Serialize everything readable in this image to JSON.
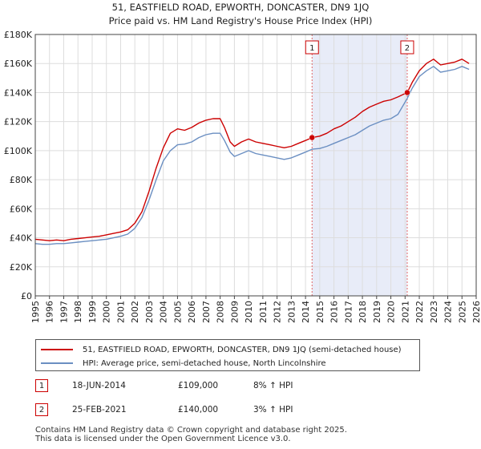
{
  "chart_data": {
    "type": "line",
    "title": "51, EASTFIELD ROAD, EPWORTH, DONCASTER, DN9 1JQ",
    "subtitle": "Price paid vs. HM Land Registry's House Price Index (HPI)",
    "xlabel": "",
    "ylabel": "",
    "xlim": [
      1995,
      2026
    ],
    "ylim": [
      0,
      180000
    ],
    "x_ticks": [
      "1995",
      "1996",
      "1997",
      "1998",
      "1999",
      "2000",
      "2001",
      "2002",
      "2003",
      "2004",
      "2005",
      "2006",
      "2007",
      "2008",
      "2009",
      "2010",
      "2011",
      "2012",
      "2013",
      "2014",
      "2015",
      "2016",
      "2017",
      "2018",
      "2019",
      "2020",
      "2021",
      "2022",
      "2023",
      "2024",
      "2025",
      "2026"
    ],
    "y_ticks": [
      {
        "value": 0,
        "label": "£0"
      },
      {
        "value": 20000,
        "label": "£20K"
      },
      {
        "value": 40000,
        "label": "£40K"
      },
      {
        "value": 60000,
        "label": "£60K"
      },
      {
        "value": 80000,
        "label": "£80K"
      },
      {
        "value": 100000,
        "label": "£100K"
      },
      {
        "value": 120000,
        "label": "£120K"
      },
      {
        "value": 140000,
        "label": "£140K"
      },
      {
        "value": 160000,
        "label": "£160K"
      },
      {
        "value": 180000,
        "label": "£180K"
      }
    ],
    "grid": true,
    "shaded_period": [
      2014.46,
      2021.15
    ],
    "series": [
      {
        "name": "51, EASTFIELD ROAD, EPWORTH, DONCASTER, DN9 1JQ (semi-detached house)",
        "color": "#cc0000",
        "x": [
          1995,
          1995.5,
          1996,
          1996.5,
          1997,
          1997.5,
          1998,
          1998.5,
          1999,
          1999.5,
          2000,
          2000.5,
          2001,
          2001.5,
          2002,
          2002.5,
          2003,
          2003.5,
          2004,
          2004.5,
          2005,
          2005.5,
          2006,
          2006.5,
          2007,
          2007.5,
          2008,
          2008.3,
          2008.7,
          2009,
          2009.5,
          2010,
          2010.5,
          2011,
          2011.5,
          2012,
          2012.5,
          2013,
          2013.5,
          2014,
          2014.46,
          2015,
          2015.5,
          2016,
          2016.5,
          2017,
          2017.5,
          2018,
          2018.5,
          2019,
          2019.5,
          2020,
          2020.5,
          2021.15,
          2021.5,
          2022,
          2022.5,
          2023,
          2023.5,
          2024,
          2024.5,
          2025,
          2025.5
        ],
        "y": [
          39000,
          38500,
          38000,
          38500,
          38000,
          39000,
          39500,
          40000,
          40500,
          41000,
          42000,
          43000,
          44000,
          45500,
          50000,
          58000,
          72000,
          88000,
          102000,
          112000,
          115000,
          114000,
          116000,
          119000,
          121000,
          122000,
          122000,
          116000,
          106000,
          103000,
          106000,
          108000,
          106000,
          105000,
          104000,
          103000,
          102000,
          103000,
          105000,
          107000,
          109000,
          110000,
          112000,
          115000,
          117000,
          120000,
          123000,
          127000,
          130000,
          132000,
          134000,
          135000,
          137000,
          140000,
          147000,
          155000,
          160000,
          163000,
          159000,
          160000,
          161000,
          163000,
          160000
        ]
      },
      {
        "name": "HPI: Average price, semi-detached house, North Lincolnshire",
        "color": "#6b8fc2",
        "x": [
          1995,
          1995.5,
          1996,
          1996.5,
          1997,
          1997.5,
          1998,
          1998.5,
          1999,
          1999.5,
          2000,
          2000.5,
          2001,
          2001.5,
          2002,
          2002.5,
          2003,
          2003.5,
          2004,
          2004.5,
          2005,
          2005.5,
          2006,
          2006.5,
          2007,
          2007.5,
          2008,
          2008.3,
          2008.7,
          2009,
          2009.5,
          2010,
          2010.5,
          2011,
          2011.5,
          2012,
          2012.5,
          2013,
          2013.5,
          2014,
          2014.46,
          2015,
          2015.5,
          2016,
          2016.5,
          2017,
          2017.5,
          2018,
          2018.5,
          2019,
          2019.5,
          2020,
          2020.5,
          2021.15,
          2021.5,
          2022,
          2022.5,
          2023,
          2023.5,
          2024,
          2024.5,
          2025,
          2025.5
        ],
        "y": [
          36000,
          35500,
          35500,
          36000,
          36000,
          36500,
          37000,
          37500,
          38000,
          38500,
          39000,
          40000,
          41000,
          42500,
          46500,
          54000,
          66000,
          80000,
          93000,
          100000,
          104000,
          104500,
          106000,
          109000,
          111000,
          112000,
          112000,
          107000,
          99000,
          96000,
          98000,
          100000,
          98000,
          97000,
          96000,
          95000,
          94000,
          95000,
          97000,
          99000,
          101000,
          101500,
          103000,
          105000,
          107000,
          109000,
          111000,
          114000,
          117000,
          119000,
          121000,
          122000,
          125000,
          136000,
          143000,
          151000,
          155000,
          158000,
          154000,
          155000,
          156000,
          158000,
          156000
        ]
      }
    ],
    "sales": [
      {
        "id": "1",
        "x": 2014.46,
        "price": 109000,
        "date": "18-JUN-2014",
        "price_label": "£109,000",
        "hpi_change": "8% ↑ HPI"
      },
      {
        "id": "2",
        "x": 2021.15,
        "price": 140000,
        "date": "25-FEB-2021",
        "price_label": "£140,000",
        "hpi_change": "3% ↑ HPI"
      }
    ],
    "legend_position": "below-chart"
  },
  "legend": {
    "property_label": "51, EASTFIELD ROAD, EPWORTH, DONCASTER, DN9 1JQ (semi-detached house)",
    "property_color": "#cc0000",
    "hpi_label": "HPI: Average price, semi-detached house, North Lincolnshire",
    "hpi_color": "#6b8fc2"
  },
  "footer": {
    "line1": "Contains HM Land Registry data © Crown copyright and database right 2025.",
    "line2": "This data is licensed under the Open Government Licence v3.0."
  }
}
